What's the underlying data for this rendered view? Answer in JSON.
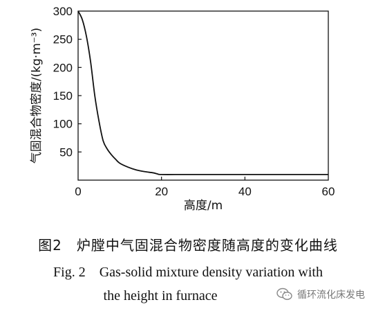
{
  "chart_data": {
    "type": "line",
    "xlabel": "高度/m",
    "ylabel": "气固混合物密度/(kg·m⁻³)",
    "xlim": [
      0,
      60
    ],
    "ylim": [
      0,
      300
    ],
    "x_ticks": [
      "0",
      "20",
      "40",
      "60"
    ],
    "y_ticks": [
      "50",
      "100",
      "150",
      "200",
      "250",
      "300"
    ],
    "grid": false,
    "series": [
      {
        "x": [
          0,
          1,
          2,
          3,
          4,
          5,
          6,
          7,
          8,
          9,
          10,
          12,
          14,
          16,
          18,
          19,
          20,
          25,
          30,
          40,
          50,
          60
        ],
        "y": [
          300,
          285,
          255,
          210,
          150,
          105,
          70,
          55,
          45,
          37,
          30,
          23,
          18,
          15,
          13,
          11,
          10,
          10,
          10,
          10,
          10,
          10
        ]
      }
    ]
  },
  "caption": {
    "cn": "图2　炉膛中气固混合物密度随高度的变化曲线",
    "en_line1": "Fig. 2　Gas-solid mixture density variation with",
    "en_line2": "the height in furnace"
  },
  "watermark": {
    "text": "循环流化床发电",
    "icon": "wechat-logo-icon"
  }
}
